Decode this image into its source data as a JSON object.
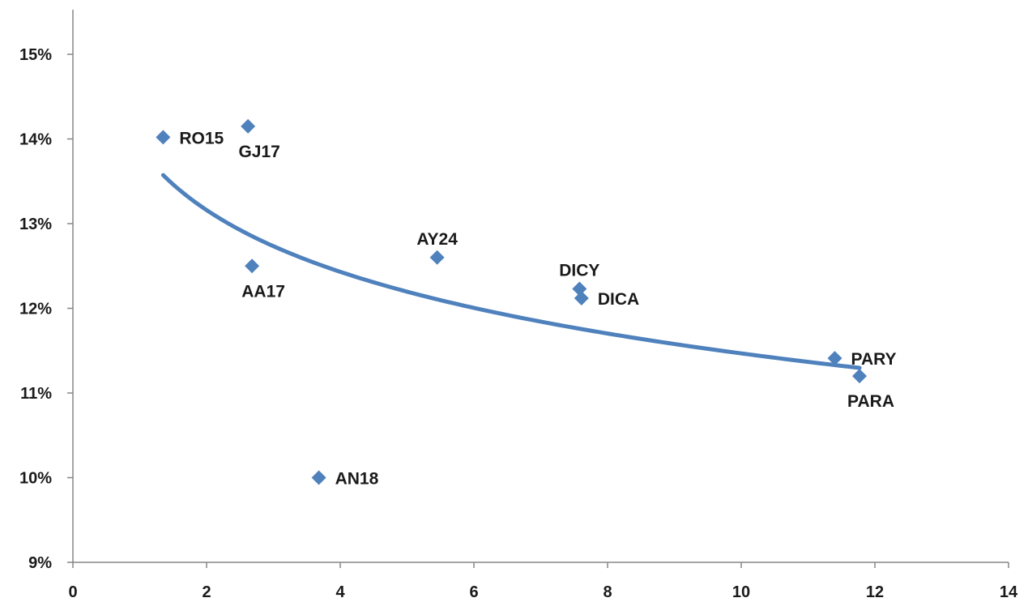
{
  "chart_data": {
    "type": "scatter",
    "title": "",
    "xlabel": "",
    "ylabel": "",
    "xlim": [
      0,
      14
    ],
    "ylim": [
      9,
      15.5
    ],
    "x_ticks": [
      {
        "value": 0,
        "label": "0"
      },
      {
        "value": 2,
        "label": "2"
      },
      {
        "value": 4,
        "label": "4"
      },
      {
        "value": 6,
        "label": "6"
      },
      {
        "value": 8,
        "label": "8"
      },
      {
        "value": 10,
        "label": "10"
      },
      {
        "value": 12,
        "label": "12"
      },
      {
        "value": 14,
        "label": "14"
      }
    ],
    "y_ticks": [
      {
        "value": 9,
        "label": "9%"
      },
      {
        "value": 10,
        "label": "10%"
      },
      {
        "value": 11,
        "label": "11%"
      },
      {
        "value": 12,
        "label": "12%"
      },
      {
        "value": 13,
        "label": "13%"
      },
      {
        "value": 14,
        "label": "14%"
      },
      {
        "value": 15,
        "label": "15%"
      }
    ],
    "grid": false,
    "legend": "none",
    "marker": "diamond",
    "color": "#4F81BD",
    "points": [
      {
        "label": "RO15",
        "x": 1.35,
        "y": 14.02,
        "label_pos": "right"
      },
      {
        "label": "GJ17",
        "x": 2.62,
        "y": 14.15,
        "label_pos": "below"
      },
      {
        "label": "AA17",
        "x": 2.68,
        "y": 12.5,
        "label_pos": "below"
      },
      {
        "label": "AN18",
        "x": 3.68,
        "y": 10.0,
        "label_pos": "right"
      },
      {
        "label": "AY24",
        "x": 5.45,
        "y": 12.6,
        "label_pos": "above"
      },
      {
        "label": "DICY",
        "x": 7.58,
        "y": 12.23,
        "label_pos": "above"
      },
      {
        "label": "DICA",
        "x": 7.61,
        "y": 12.12,
        "label_pos": "right"
      },
      {
        "label": "PARY",
        "x": 11.4,
        "y": 11.41,
        "label_pos": "right"
      },
      {
        "label": "PARA",
        "x": 11.77,
        "y": 11.2,
        "label_pos": "below"
      }
    ],
    "trendline": {
      "type": "logarithmic",
      "a": 13.889,
      "b": -1.0516,
      "x_range": [
        1.35,
        11.77
      ]
    }
  }
}
